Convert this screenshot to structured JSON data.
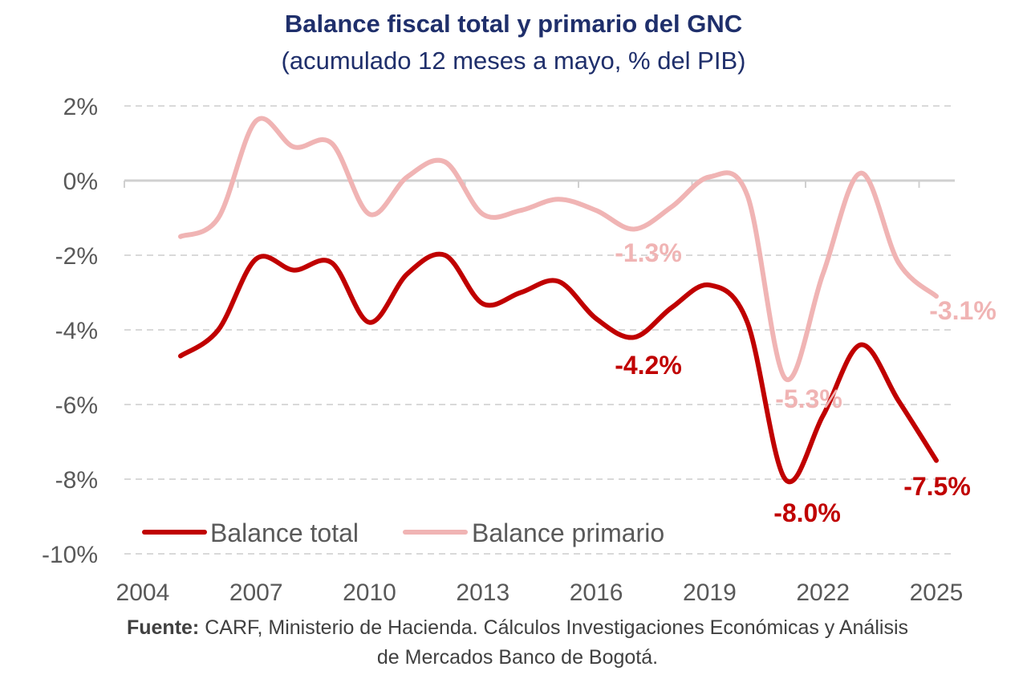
{
  "chart_data": {
    "type": "line",
    "title": "Balance fiscal total y primario del GNC",
    "subtitle": "(acumulado 12 meses a mayo, % del PIB)",
    "xlabel": "",
    "ylabel": "",
    "x": [
      2005,
      2006,
      2007,
      2008,
      2009,
      2010,
      2011,
      2012,
      2013,
      2014,
      2015,
      2016,
      2017,
      2018,
      2019,
      2020,
      2021,
      2022,
      2023,
      2024,
      2025
    ],
    "x_ticks": [
      "2004",
      "2007",
      "2010",
      "2013",
      "2016",
      "2019",
      "2022",
      "2025"
    ],
    "x_tick_values": [
      2004,
      2007,
      2010,
      2013,
      2016,
      2019,
      2022,
      2025
    ],
    "y_ticks": [
      "2%",
      "0%",
      "-2%",
      "-4%",
      "-6%",
      "-8%",
      "-10%"
    ],
    "y_tick_values": [
      2,
      0,
      -2,
      -4,
      -6,
      -8,
      -10
    ],
    "ylim": [
      -10,
      2
    ],
    "xlim": [
      2004,
      2025
    ],
    "grid": "horizontal dashed",
    "legend_position": "bottom-left",
    "series": [
      {
        "name": "Balance total",
        "color": "#c00000",
        "values": [
          -4.7,
          -4.0,
          -2.1,
          -2.4,
          -2.2,
          -3.8,
          -2.5,
          -2.0,
          -3.3,
          -3.0,
          -2.7,
          -3.7,
          -4.2,
          -3.4,
          -2.8,
          -3.8,
          -8.0,
          -6.3,
          -4.4,
          -5.9,
          -7.5
        ],
        "labels": [
          {
            "x": 2017,
            "text": "-4.2%"
          },
          {
            "x": 2021,
            "text": "-8.0%"
          },
          {
            "x": 2025,
            "text": "-7.5%"
          }
        ]
      },
      {
        "name": "Balance primario",
        "color": "#f0b4b4",
        "values": [
          -1.5,
          -1.0,
          1.6,
          0.9,
          1.0,
          -0.9,
          0.1,
          0.5,
          -0.9,
          -0.8,
          -0.5,
          -0.8,
          -1.3,
          -0.7,
          0.1,
          -0.4,
          -5.3,
          -2.5,
          0.2,
          -2.2,
          -3.1
        ],
        "labels": [
          {
            "x": 2017,
            "text": "-1.3%"
          },
          {
            "x": 2021,
            "text": "-5.3%"
          },
          {
            "x": 2025,
            "text": "-3.1%"
          }
        ]
      }
    ]
  },
  "source": {
    "label": "Fuente:",
    "text": "CARF, Ministerio de Hacienda. Cálculos Investigaciones Económicas y Análisis",
    "text2": "de Mercados Banco de Bogotá."
  }
}
